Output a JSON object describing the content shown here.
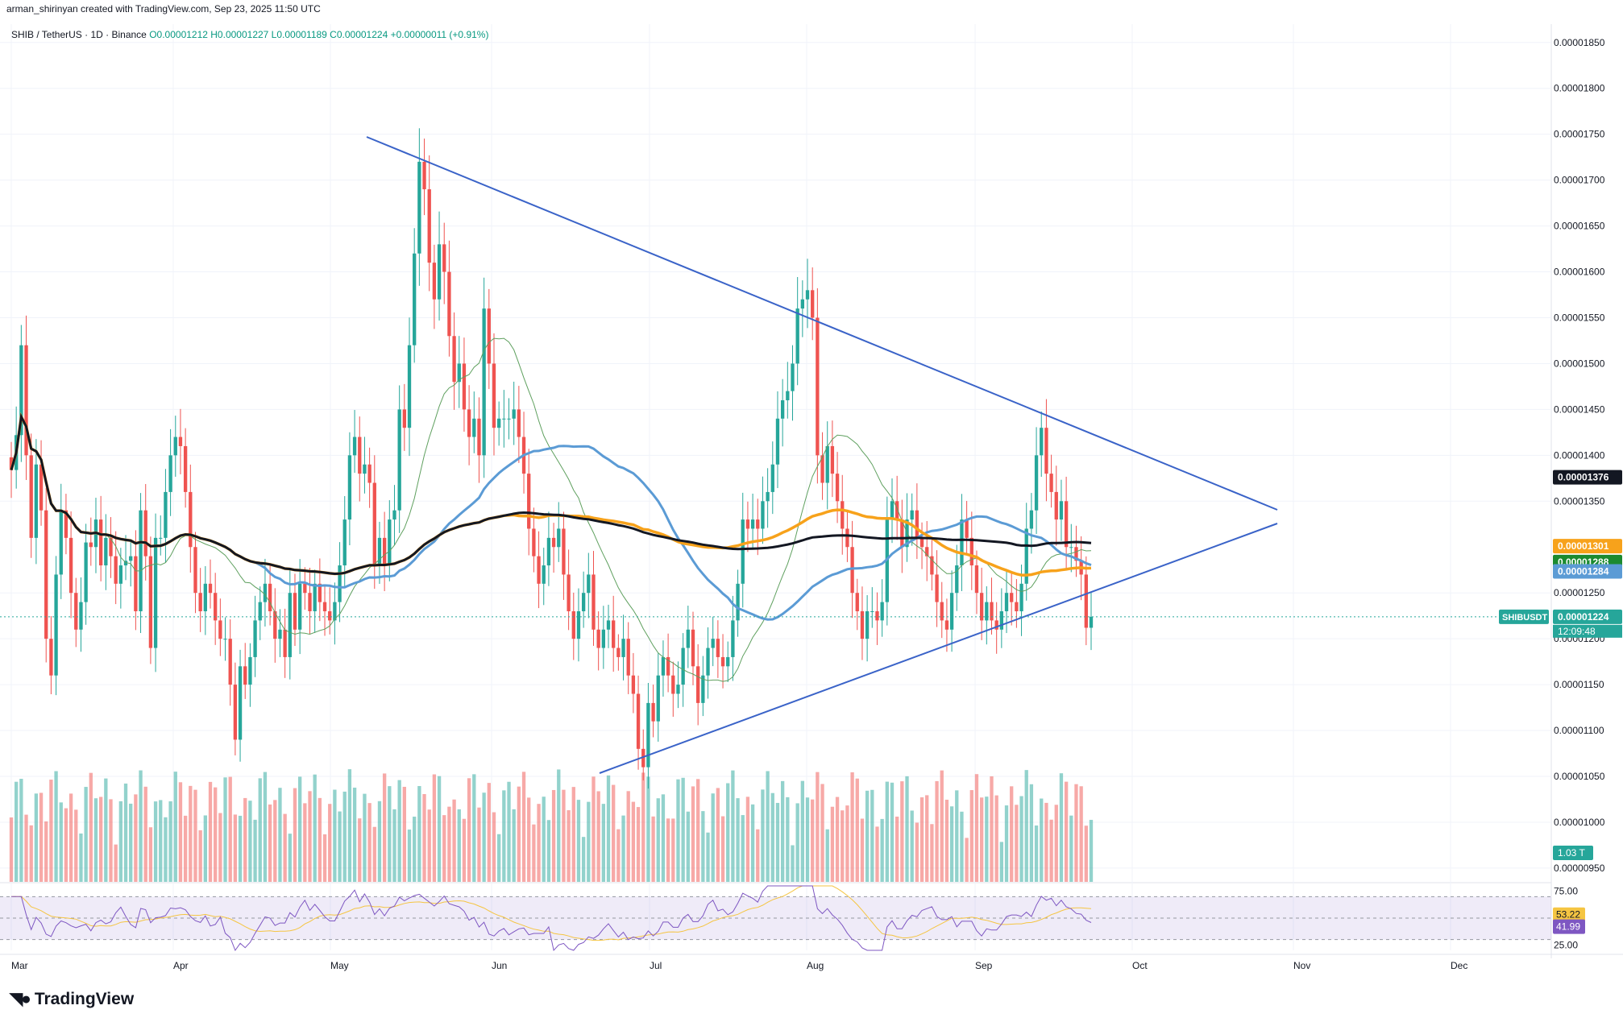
{
  "header": {
    "credit": "arman_shirinyan created with TradingView.com, Sep 23, 2025 11:50 UTC"
  },
  "legend": {
    "symbol": "SHIB / TetherUS · 1D · Binance",
    "ohlc": "O0.00001212  H0.00001227  L0.00001189  C0.00001224  +0.00000011 (+0.91%)"
  },
  "brand": {
    "name": "TradingView",
    "icon": "tradingview-logo-icon"
  },
  "colors": {
    "up": "#26a69a",
    "down": "#ef5350",
    "trendline": "#3a63c8",
    "ma_black": "#131722",
    "ma_orange": "#f7a21b",
    "ma_blue": "#5b9bd5",
    "ma_green": "#5fa05f",
    "rsi": "#7e57c2",
    "rsi_ma": "#f5c542"
  },
  "chart_data": [
    {
      "type": "candlestick",
      "title": "",
      "symbol_tag": "SHIBUSDT",
      "timer": "12:09:48",
      "x_ticks": [
        "Mar",
        "Apr",
        "May",
        "Jun",
        "Jul",
        "Aug",
        "Sep",
        "Oct",
        "Nov",
        "Dec"
      ],
      "y_ticks": [
        "0.00001850",
        "0.00001800",
        "0.00001750",
        "0.00001700",
        "0.00001650",
        "0.00001600",
        "0.00001550",
        "0.00001500",
        "0.00001450",
        "0.00001400",
        "0.00001350",
        "0.00001250",
        "0.00001200",
        "0.00001150",
        "0.00001100",
        "0.00001050",
        "0.00001000",
        "0.00000950"
      ],
      "ylim": [
        9.35e-06,
        1.87e-05
      ],
      "price_tags": [
        {
          "label": "0.00001376",
          "value": 1.376e-05,
          "color": "#131722"
        },
        {
          "label": "0.00001301",
          "value": 1.301e-05,
          "color": "#f7a21b"
        },
        {
          "label": "0.00001288",
          "value": 1.288e-05,
          "color": "#1b8a2f"
        },
        {
          "label": "0.00001284",
          "value": 1.284e-05,
          "color": "#5b9bd5"
        },
        {
          "label": "0.00001224",
          "value": 1.224e-05,
          "color": "#26a69a"
        }
      ],
      "volume_tag": "1.03 T",
      "close_series": [
        0.01384,
        0.01422,
        0.0152,
        0.014,
        0.0131,
        0.0139,
        0.0134,
        0.012,
        0.0116,
        0.0127,
        0.0134,
        0.0131,
        0.0125,
        0.0121,
        0.0124,
        0.01305,
        0.013,
        0.0133,
        0.0128,
        0.0131,
        0.0129,
        0.0126,
        0.0128,
        0.01285,
        0.0129,
        0.0123,
        0.0134,
        0.0129,
        0.0119,
        0.0131,
        0.0131,
        0.0136,
        0.014,
        0.0142,
        0.0141,
        0.0136,
        0.013,
        0.0125,
        0.0123,
        0.0126,
        0.0125,
        0.0122,
        0.012,
        0.012,
        0.0115,
        0.0109,
        0.0117,
        0.0115,
        0.0118,
        0.0122,
        0.0124,
        0.0126,
        0.0123,
        0.012,
        0.0121,
        0.0118,
        0.0125,
        0.0121,
        0.0126,
        0.0125,
        0.0123,
        0.0126,
        0.0124,
        0.0123,
        0.0122,
        0.0124,
        0.0128,
        0.0133,
        0.014,
        0.0142,
        0.0138,
        0.0139,
        0.0137,
        0.0128,
        0.0131,
        0.0128,
        0.0133,
        0.0134,
        0.0145,
        0.0143,
        0.0152,
        0.0162,
        0.0172,
        0.0169,
        0.0161,
        0.0157,
        0.0163,
        0.016,
        0.0153,
        0.0148,
        0.015,
        0.0145,
        0.0142,
        0.0144,
        0.014,
        0.0156,
        0.015,
        0.0143,
        0.0144,
        0.0144,
        0.0144,
        0.0145,
        0.0142,
        0.0138,
        0.0132,
        0.0129,
        0.0126,
        0.0128,
        0.0131,
        0.013,
        0.0132,
        0.0127,
        0.0123,
        0.012,
        0.0123,
        0.0125,
        0.0127,
        0.0121,
        0.0119,
        0.0121,
        0.0122,
        0.0119,
        0.0118,
        0.012,
        0.0116,
        0.0114,
        0.0108,
        0.0106,
        0.0113,
        0.0111,
        0.0116,
        0.0118,
        0.0116,
        0.0114,
        0.0115,
        0.0119,
        0.0121,
        0.0117,
        0.0113,
        0.0116,
        0.0119,
        0.012,
        0.0118,
        0.0117,
        0.0118,
        0.0122,
        0.0126,
        0.0133,
        0.0132,
        0.0133,
        0.0132,
        0.0135,
        0.0136,
        0.0139,
        0.0144,
        0.0146,
        0.0147,
        0.015,
        0.0156,
        0.0157,
        0.0158,
        0.0155,
        0.014,
        0.0137,
        0.0141,
        0.0138,
        0.0135,
        0.0132,
        0.013,
        0.0125,
        0.0123,
        0.012,
        0.0123,
        0.0123,
        0.0122,
        0.0124,
        0.0133,
        0.0135,
        0.0133,
        0.013,
        0.0133,
        0.0134,
        0.0131,
        0.013,
        0.0129,
        0.0127,
        0.0124,
        0.0122,
        0.0121,
        0.0125,
        0.0128,
        0.0133,
        0.0131,
        0.0128,
        0.0125,
        0.0122,
        0.0124,
        0.0122,
        0.0121,
        0.0123,
        0.0125,
        0.0124,
        0.0123,
        0.0126,
        0.0132,
        0.0134,
        0.014,
        0.0143,
        0.0138,
        0.0136,
        0.0133,
        0.0135,
        0.013,
        0.013,
        0.01285,
        0.0127,
        0.01212,
        0.01224
      ]
    },
    {
      "type": "line",
      "title": "",
      "y_ticks": [
        "75.00",
        "25.00"
      ],
      "ylim": [
        20,
        80
      ],
      "rsi_tags": [
        {
          "label": "53.22",
          "value": 53.22,
          "color": "#f5c542"
        },
        {
          "label": "41.99",
          "value": 41.99,
          "color": "#7e57c2"
        }
      ]
    }
  ]
}
